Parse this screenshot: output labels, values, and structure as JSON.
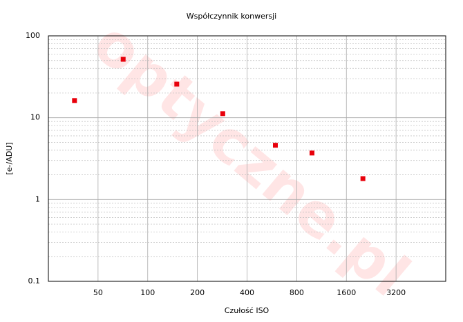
{
  "chart_data": {
    "type": "scatter",
    "title": "Współczynnik konwersji",
    "x_label": "Czułość ISO",
    "y_label": "[e-/ADU]",
    "watermark": "optyczne.pl",
    "x": [
      36,
      71,
      150,
      285,
      594,
      990,
      2015
    ],
    "series": [
      {
        "color": "#e8000b",
        "values": [
          16.2,
          51.7,
          25.7,
          11.2,
          4.6,
          3.7,
          1.8
        ]
      }
    ],
    "xlim": [
      25,
      6400
    ],
    "xticks": [
      50,
      100,
      200,
      400,
      800,
      1600,
      3200
    ],
    "x_log_base": 2,
    "ylim": [
      0.1,
      100
    ],
    "yticks": [
      100,
      10,
      1,
      0.1
    ],
    "y_log": true,
    "grid": true,
    "y_minor_grid": true
  }
}
